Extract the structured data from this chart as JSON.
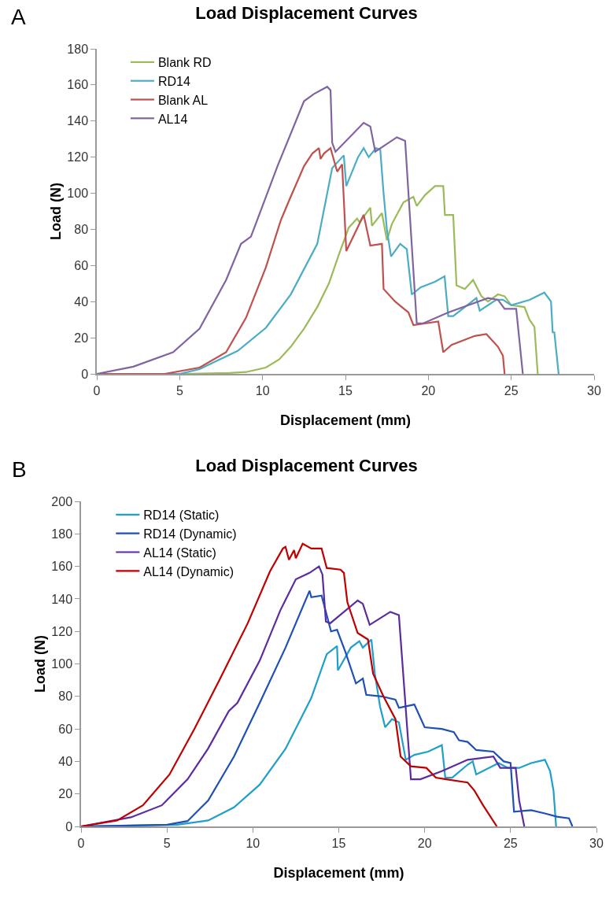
{
  "chart_data": [
    {
      "type": "line",
      "title": "Load Displacement Curves",
      "xlabel": "Displacement (mm)",
      "ylabel": "Load (N)",
      "annotations": [
        "A"
      ],
      "xlim": [
        0,
        30
      ],
      "xticks": [
        0,
        5,
        10,
        15,
        20,
        25,
        30
      ],
      "ylim": [
        0,
        180
      ],
      "yticks": [
        0,
        20,
        40,
        60,
        80,
        100,
        120,
        140,
        160,
        180
      ],
      "grid": false,
      "legend": "top left",
      "marker": "none",
      "line_style": "solid",
      "series": [
        {
          "name": "Blank RD",
          "color": "#9bbb59",
          "x": [
            0,
            5,
            8,
            9,
            10.2,
            11,
            11.7,
            12.5,
            13.3,
            14,
            14.6,
            15.2,
            15.7,
            15.85,
            16.5,
            16.6,
            17.2,
            17.5,
            17.8,
            18.5,
            19.1,
            19.3,
            19.8,
            20.4,
            20.9,
            21.0,
            21.5,
            21.7,
            22.2,
            22.7,
            23.2,
            23.6,
            24.2,
            24.6,
            25.0,
            25.8,
            26.1,
            26.4,
            26.6
          ],
          "values": [
            0,
            0,
            0.5,
            1,
            3.5,
            8,
            15,
            25,
            37,
            50,
            66,
            81,
            86,
            84,
            92,
            82,
            89,
            74,
            83,
            95,
            98,
            93,
            99,
            104,
            104,
            88,
            88,
            49,
            47,
            52,
            43,
            40,
            44,
            43,
            38,
            37,
            30,
            26,
            0
          ]
        },
        {
          "name": "RD14",
          "color": "#4bacc6",
          "x": [
            0,
            5,
            6.2,
            8.5,
            10.2,
            11.7,
            13.3,
            14.2,
            14.9,
            15.05,
            15.76,
            16.1,
            16.4,
            16.85,
            17.1,
            17.3,
            17.5,
            17.75,
            18.3,
            18.7,
            19.0,
            19.55,
            20.4,
            20.98,
            21.2,
            21.5,
            22.9,
            23.1,
            24.1,
            24.5,
            25.0,
            26.1,
            27.0,
            27.4,
            27.5,
            27.6,
            27.86
          ],
          "values": [
            0,
            0,
            2.6,
            12.7,
            25.5,
            44,
            72,
            114,
            121,
            104,
            120,
            125,
            120,
            125,
            124,
            100,
            80,
            65,
            72,
            69,
            44,
            48,
            51,
            54,
            32,
            32,
            42,
            35,
            41,
            41,
            38,
            41,
            45,
            40,
            23,
            23,
            0
          ]
        },
        {
          "name": "Blank AL",
          "color": "#c0504d",
          "x": [
            0,
            4.1,
            6.2,
            7.8,
            9.0,
            10.2,
            11.1,
            11.6,
            12.5,
            13.0,
            13.4,
            13.5,
            13.7,
            14.1,
            14.5,
            14.8,
            15.05,
            16.1,
            16.5,
            17.2,
            17.3,
            18.0,
            18.8,
            19.1,
            20.6,
            20.9,
            21.4,
            22.8,
            23.5,
            24.2,
            24.5,
            24.6
          ],
          "values": [
            0,
            0,
            3.5,
            12,
            31,
            59,
            85,
            96,
            115,
            122,
            125,
            119,
            122,
            125,
            112,
            116,
            68,
            88,
            71,
            72,
            47,
            40,
            34,
            27,
            29,
            12,
            16,
            21,
            22,
            15,
            10,
            0
          ]
        },
        {
          "name": "AL14",
          "color": "#8064a2",
          "x": [
            0,
            2.2,
            4.6,
            6.2,
            7.8,
            8.7,
            9.3,
            10.9,
            12.5,
            13.1,
            13.9,
            14.1,
            14.2,
            14.4,
            16.1,
            16.5,
            16.8,
            18.1,
            18.6,
            19.3,
            19.7,
            21.2,
            23.6,
            24.2,
            24.6,
            25.3,
            25.7
          ],
          "values": [
            0,
            4,
            12,
            25,
            52,
            72,
            76,
            115,
            151,
            155,
            159,
            157,
            128,
            123,
            139,
            137,
            123,
            131,
            129,
            28,
            28,
            34,
            42,
            41,
            36,
            36,
            0
          ]
        }
      ]
    },
    {
      "type": "line",
      "title": "Load Displacement Curves",
      "xlabel": "Displacement (mm)",
      "ylabel": "Load (N)",
      "annotations": [
        "B"
      ],
      "xlim": [
        0,
        30
      ],
      "xticks": [
        0,
        5,
        10,
        15,
        20,
        25,
        30
      ],
      "ylim": [
        0,
        200
      ],
      "yticks": [
        0,
        20,
        40,
        60,
        80,
        100,
        120,
        140,
        160,
        180,
        200
      ],
      "grid": false,
      "legend": "top left",
      "marker": "none",
      "line_style": "solid",
      "series": [
        {
          "name": "RD14 (Static)",
          "color": "#1f9fcc",
          "x": [
            0,
            5.6,
            7.4,
            8.9,
            10.4,
            11.9,
            13.4,
            14.3,
            14.9,
            14.95,
            15.7,
            16.2,
            16.4,
            16.9,
            17.1,
            17.4,
            17.7,
            18.1,
            18.5,
            18.9,
            19.4,
            20.2,
            21.0,
            21.2,
            21.6,
            22.5,
            22.8,
            23.0,
            24.3,
            24.85,
            25.5,
            26.2,
            27.0,
            27.3,
            27.5,
            27.65
          ],
          "values": [
            0,
            1,
            3.7,
            11.7,
            25.7,
            47.7,
            79,
            106,
            111,
            96,
            110,
            114,
            110,
            115,
            94,
            74,
            61,
            66,
            64,
            41,
            44,
            46,
            50,
            30,
            30,
            38,
            40,
            32,
            39,
            36,
            36,
            39,
            41,
            34,
            22,
            0
          ]
        },
        {
          "name": "RD14 (Dynamic)",
          "color": "#1f50b5",
          "x": [
            0,
            5,
            6.2,
            7.4,
            8.9,
            10.4,
            11.9,
            13.3,
            13.4,
            14.0,
            14.3,
            14.55,
            14.9,
            15.4,
            16.0,
            16.4,
            16.6,
            17.5,
            18.3,
            18.5,
            19.4,
            20.0,
            21.0,
            21.7,
            22.0,
            22.5,
            23.0,
            24.0,
            24.6,
            25.0,
            25.2,
            26.2,
            27.0,
            27.7,
            28.4,
            28.6
          ],
          "values": [
            0,
            1,
            3.3,
            16,
            43,
            76,
            110,
            145,
            141,
            142,
            130,
            120,
            121,
            107,
            88,
            91,
            81,
            80,
            78,
            73,
            75,
            61,
            60,
            58,
            53,
            52,
            47,
            46,
            40,
            39,
            9,
            10,
            8,
            6,
            5,
            0
          ]
        },
        {
          "name": "AL14 (Static)",
          "color": "#5b2ca0",
          "x": [
            0,
            2.9,
            4.7,
            6.2,
            7.4,
            8.6,
            9.1,
            10.4,
            11.6,
            12.5,
            13.3,
            13.85,
            14.05,
            14.25,
            14.5,
            16.1,
            16.4,
            16.8,
            18.0,
            18.5,
            19.2,
            19.75,
            21.0,
            22.5,
            24.0,
            24.4,
            25.3,
            25.5,
            25.8
          ],
          "values": [
            0,
            5.6,
            13,
            29,
            48,
            71,
            76,
            102,
            133,
            152,
            156,
            160,
            155,
            126,
            125,
            139,
            137,
            124,
            132,
            130,
            29,
            29,
            34,
            41,
            43,
            36,
            36,
            16,
            0
          ]
        },
        {
          "name": "AL14 (Dynamic)",
          "color": "#c00000",
          "x": [
            0,
            2.1,
            3.6,
            5.15,
            6.6,
            8.1,
            9.7,
            11.0,
            11.75,
            11.9,
            12.1,
            12.4,
            12.5,
            12.9,
            13.4,
            14.0,
            14.3,
            15.1,
            15.3,
            15.5,
            16.1,
            16.7,
            17.0,
            17.6,
            18.3,
            18.6,
            19.2,
            20.1,
            20.65,
            21.25,
            22.5,
            22.9,
            23.4,
            24.2
          ],
          "values": [
            0,
            3.7,
            13,
            32,
            60,
            91,
            125,
            157,
            171,
            172,
            164,
            170,
            165,
            174,
            171,
            171,
            159,
            158,
            156,
            138,
            119,
            115,
            94,
            80,
            66,
            43,
            37,
            36,
            30,
            29,
            27,
            22,
            13,
            0
          ]
        }
      ]
    }
  ]
}
